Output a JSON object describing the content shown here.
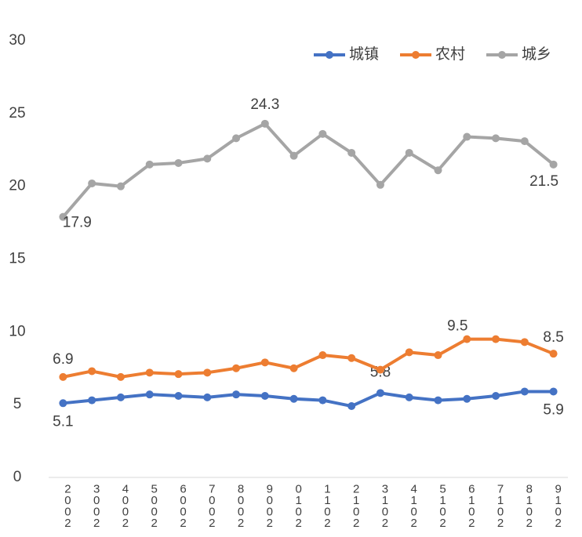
{
  "chart_data": {
    "type": "line",
    "categories": [
      "2002",
      "2003",
      "2004",
      "2005",
      "2006",
      "2007",
      "2008",
      "2009",
      "2010",
      "2011",
      "2012",
      "2013",
      "2014",
      "2015",
      "2016",
      "2017",
      "2018",
      "2019"
    ],
    "series": [
      {
        "name": "城镇",
        "color": "#4472c4",
        "values": [
          5.1,
          5.3,
          5.5,
          5.7,
          5.6,
          5.5,
          5.7,
          5.6,
          5.4,
          5.3,
          4.9,
          5.8,
          5.5,
          5.3,
          5.4,
          5.6,
          5.9,
          5.9
        ],
        "labeled": [
          0,
          11,
          17
        ]
      },
      {
        "name": "农村",
        "color": "#ed7d31",
        "values": [
          6.9,
          7.3,
          6.9,
          7.2,
          7.1,
          7.2,
          7.5,
          7.9,
          7.5,
          8.4,
          8.2,
          7.4,
          8.6,
          8.4,
          9.5,
          9.5,
          9.3,
          8.5
        ],
        "labeled": [
          0,
          14,
          17
        ]
      },
      {
        "name": "城乡",
        "color": "#a5a5a5",
        "values": [
          17.9,
          20.2,
          20.0,
          21.5,
          21.6,
          21.9,
          23.3,
          24.3,
          22.1,
          23.6,
          22.3,
          20.1,
          22.3,
          21.1,
          23.4,
          23.3,
          23.1,
          21.5
        ],
        "labeled": [
          0,
          7,
          17
        ]
      }
    ],
    "ylim": [
      0,
      30
    ],
    "yticks": [
      0,
      5,
      10,
      15,
      20,
      25,
      30
    ],
    "grid": false,
    "legend": "top-right"
  }
}
